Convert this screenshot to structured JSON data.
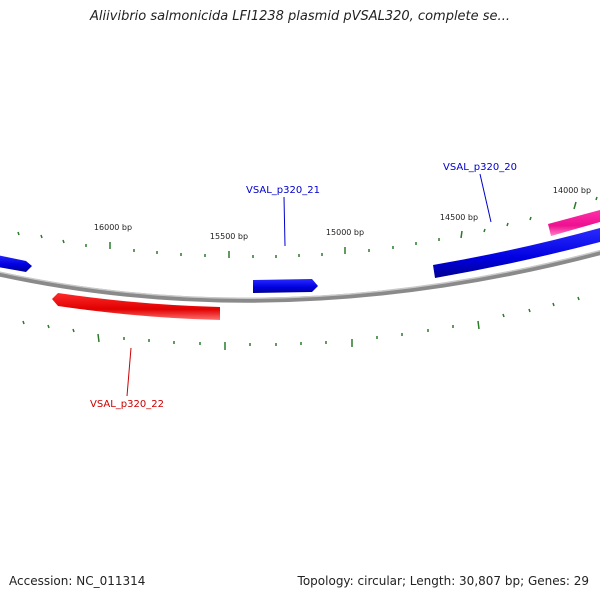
{
  "title": "Aliivibrio salmonicida LFI1238 plasmid pVSAL320, complete se...",
  "footer": {
    "accession": "Accession: NC_011314",
    "topology": "Topology: circular; Length: 30,807 bp; Genes: 29"
  },
  "colors": {
    "backbone": "#8a8a8a",
    "tick": "#2a7a2a",
    "blue": "#0000ee",
    "red": "#ee0000",
    "pink": "#ee2299"
  },
  "ticks": [
    {
      "label": "16000 bp"
    },
    {
      "label": "15500 bp"
    },
    {
      "label": "15000 bp"
    },
    {
      "label": "14500 bp"
    },
    {
      "label": "14000 bp"
    }
  ],
  "genes": [
    {
      "label": "VSAL_p320_20",
      "color": "blue"
    },
    {
      "label": "VSAL_p320_21",
      "color": "blue"
    },
    {
      "label": "VSAL_p320_22",
      "color": "red"
    }
  ]
}
